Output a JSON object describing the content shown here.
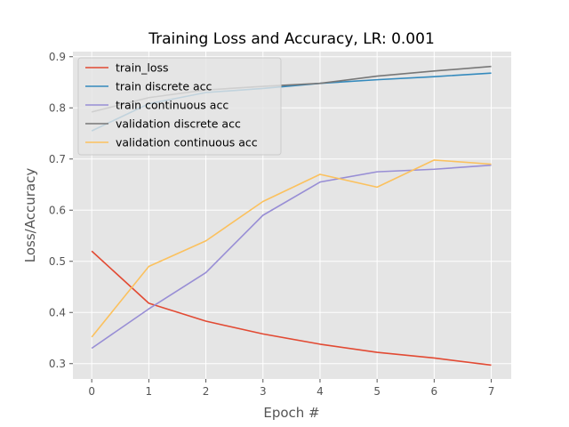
{
  "chart_data": {
    "type": "line",
    "title": "Training Loss and Accuracy, LR: 0.001",
    "xlabel": "Epoch #",
    "ylabel": "Loss/Accuracy",
    "x": [
      0,
      1,
      2,
      3,
      4,
      5,
      6,
      7
    ],
    "xlim": [
      -0.33,
      7.35
    ],
    "ylim": [
      0.27,
      0.91
    ],
    "x_ticks": [
      0,
      1,
      2,
      3,
      4,
      5,
      6,
      7
    ],
    "x_tick_labels": [
      "0",
      "1",
      "2",
      "3",
      "4",
      "5",
      "6",
      "7"
    ],
    "y_ticks": [
      0.3,
      0.4,
      0.5,
      0.6,
      0.7,
      0.8,
      0.9
    ],
    "y_tick_labels": [
      "0.3",
      "0.4",
      "0.5",
      "0.6",
      "0.7",
      "0.8",
      "0.9"
    ],
    "grid": true,
    "background": "#e5e5e5",
    "grid_color": "#ffffff",
    "legend_position": "upper-left",
    "series": [
      {
        "name": "train_loss",
        "color": "#e24a33",
        "values": [
          0.52,
          0.418,
          0.383,
          0.358,
          0.338,
          0.322,
          0.311,
          0.297
        ]
      },
      {
        "name": "train discrete acc",
        "color": "#348abd",
        "values": [
          0.755,
          0.808,
          0.83,
          0.838,
          0.848,
          0.855,
          0.861,
          0.868
        ]
      },
      {
        "name": "train continuous acc",
        "color": "#988ed5",
        "values": [
          0.33,
          0.407,
          0.478,
          0.59,
          0.655,
          0.675,
          0.68,
          0.688
        ]
      },
      {
        "name": "validation discrete acc",
        "color": "#777777",
        "values": [
          0.792,
          0.82,
          0.835,
          0.842,
          0.848,
          0.862,
          0.872,
          0.881
        ]
      },
      {
        "name": "validation continuous acc",
        "color": "#fbc15e",
        "values": [
          0.352,
          0.49,
          0.54,
          0.617,
          0.67,
          0.645,
          0.698,
          0.69
        ]
      }
    ]
  }
}
